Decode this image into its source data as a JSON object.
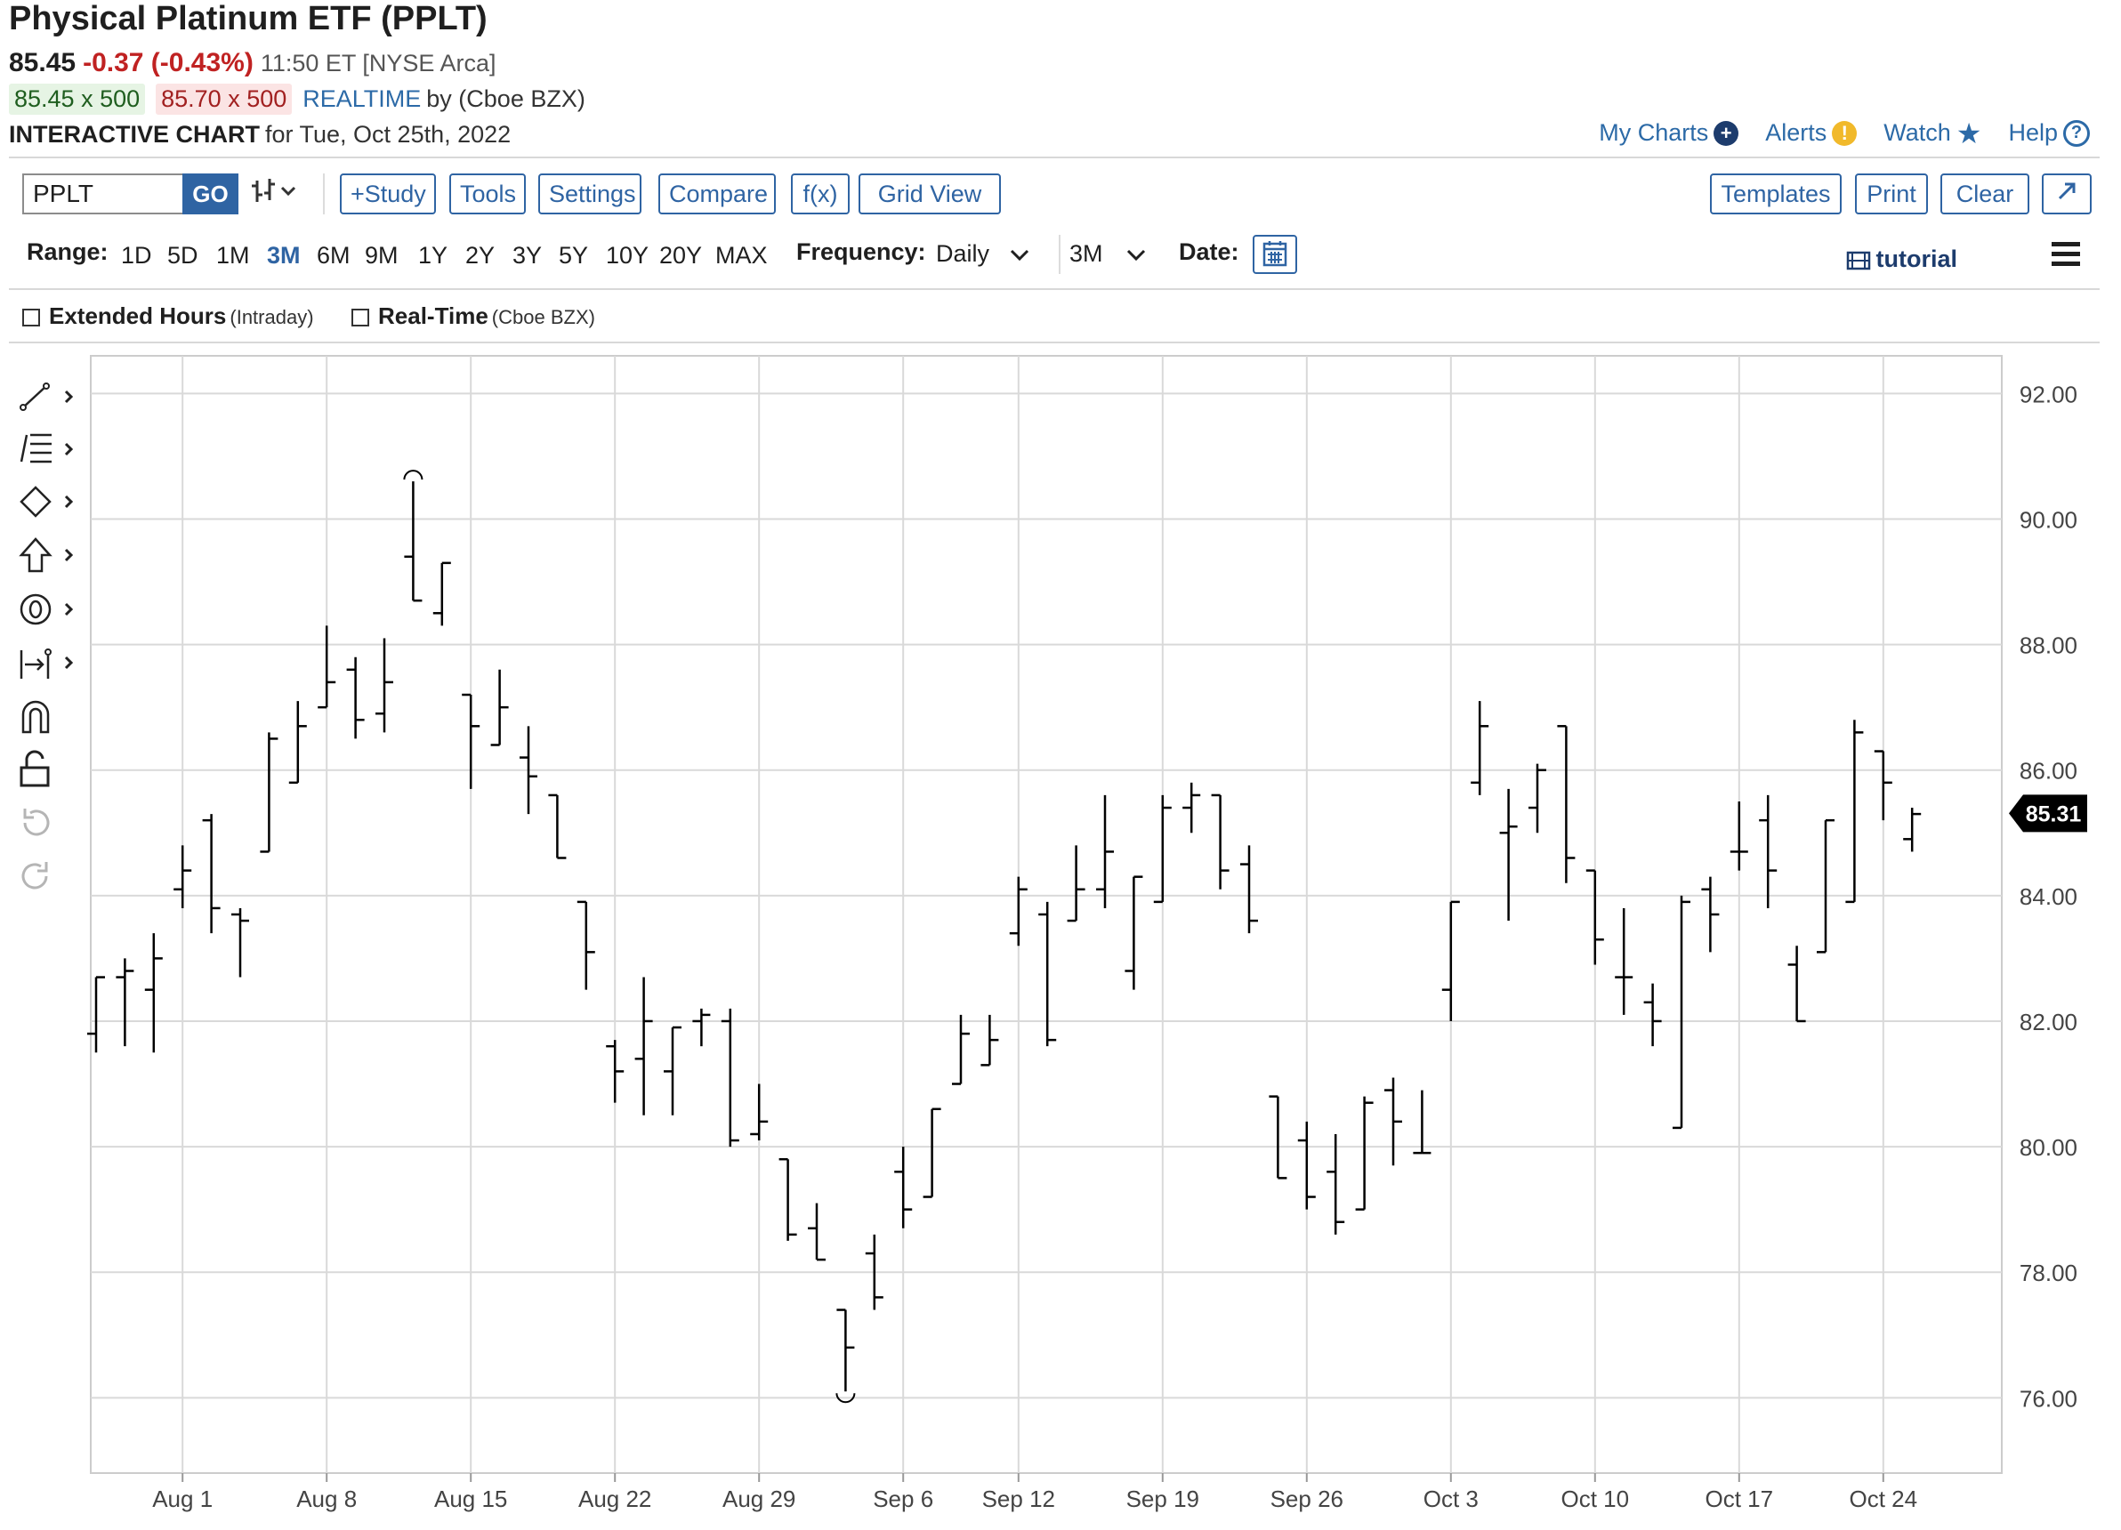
{
  "header": {
    "title": "Physical Platinum ETF (PPLT)",
    "price": "85.45",
    "change": "-0.37 (-0.43%)",
    "time_exchange": "11:50 ET [NYSE Arca]",
    "bid": "85.45 x 500",
    "ask": "85.70 x 500",
    "realtime_label": "REALTIME",
    "realtime_source": "by (Cboe BZX)",
    "chart_label": "INTERACTIVE CHART",
    "chart_date": "for Tue, Oct 25th, 2022"
  },
  "top_links": {
    "my_charts": "My Charts",
    "alerts": "Alerts",
    "watch": "Watch",
    "help": "Help"
  },
  "toolbar": {
    "symbol_value": "PPLT",
    "go": "GO",
    "study": "+Study",
    "tools": "Tools",
    "settings": "Settings",
    "compare": "Compare",
    "fx": "f(x)",
    "grid_view": "Grid View",
    "templates": "Templates",
    "print": "Print",
    "clear": "Clear"
  },
  "range_bar": {
    "range_label": "Range:",
    "ranges": [
      "1D",
      "5D",
      "1M",
      "3M",
      "6M",
      "9M",
      "1Y",
      "2Y",
      "3Y",
      "5Y",
      "10Y",
      "20Y",
      "MAX"
    ],
    "active_range": "3M",
    "frequency_label": "Frequency:",
    "frequency_value": "Daily",
    "period_value": "3M",
    "date_label": "Date:",
    "tutorial": "tutorial"
  },
  "options": {
    "extended_hours": "Extended Hours",
    "extended_hours_sub": "(Intraday)",
    "real_time": "Real-Time",
    "real_time_sub": "(Cboe BZX)"
  },
  "colors": {
    "accent": "#2f64a3",
    "negative": "#c02222",
    "bid_bg": "#e6f4e4",
    "ask_bg": "#fbe4e4",
    "bar": "#000000",
    "grid": "#d9d9d9",
    "last_tag": "#000000"
  },
  "chart_data": {
    "type": "ohlc",
    "frequency": "Daily",
    "ylim": [
      74.8,
      92.6
    ],
    "y_ticks": [
      "92.00",
      "90.00",
      "88.00",
      "86.00",
      "84.00",
      "82.00",
      "80.00",
      "78.00",
      "76.00"
    ],
    "x_ticks": [
      {
        "label": "Aug 1",
        "index": 3
      },
      {
        "label": "Aug 8",
        "index": 8
      },
      {
        "label": "Aug 15",
        "index": 13
      },
      {
        "label": "Aug 22",
        "index": 18
      },
      {
        "label": "Aug 29",
        "index": 23
      },
      {
        "label": "Sep 6",
        "index": 28
      },
      {
        "label": "Sep 12",
        "index": 32
      },
      {
        "label": "Sep 19",
        "index": 37
      },
      {
        "label": "Sep 26",
        "index": 42
      },
      {
        "label": "Oct 3",
        "index": 47
      },
      {
        "label": "Oct 10",
        "index": 52
      },
      {
        "label": "Oct 17",
        "index": 57
      },
      {
        "label": "Oct 24",
        "index": 62
      }
    ],
    "last_price": "85.31",
    "bars": [
      {
        "index": 0,
        "open": 81.8,
        "high": 82.7,
        "low": 81.5,
        "close": 82.7
      },
      {
        "index": 1,
        "open": 82.7,
        "high": 83.0,
        "low": 81.6,
        "close": 82.8
      },
      {
        "index": 2,
        "open": 82.5,
        "high": 83.4,
        "low": 81.5,
        "close": 83.0
      },
      {
        "index": 3,
        "open": 84.1,
        "high": 84.8,
        "low": 83.8,
        "close": 84.4
      },
      {
        "index": 4,
        "open": 85.2,
        "high": 85.3,
        "low": 83.4,
        "close": 83.8
      },
      {
        "index": 5,
        "open": 83.7,
        "high": 83.8,
        "low": 82.7,
        "close": 83.6
      },
      {
        "index": 6,
        "open": 84.7,
        "high": 86.6,
        "low": 84.7,
        "close": 86.5
      },
      {
        "index": 7,
        "open": 85.8,
        "high": 87.1,
        "low": 85.8,
        "close": 86.7
      },
      {
        "index": 8,
        "open": 87.0,
        "high": 88.3,
        "low": 87.0,
        "close": 87.4
      },
      {
        "index": 9,
        "open": 87.6,
        "high": 87.8,
        "low": 86.5,
        "close": 86.8
      },
      {
        "index": 10,
        "open": 86.9,
        "high": 88.1,
        "low": 86.6,
        "close": 87.4
      },
      {
        "index": 11,
        "open": 89.4,
        "high": 90.6,
        "low": 88.7,
        "close": 88.7
      },
      {
        "index": 12,
        "open": 88.5,
        "high": 89.3,
        "low": 88.3,
        "close": 89.3
      },
      {
        "index": 13,
        "open": 87.2,
        "high": 87.2,
        "low": 85.7,
        "close": 86.7
      },
      {
        "index": 14,
        "open": 86.4,
        "high": 87.6,
        "low": 86.4,
        "close": 87.0
      },
      {
        "index": 15,
        "open": 86.2,
        "high": 86.7,
        "low": 85.3,
        "close": 85.9
      },
      {
        "index": 16,
        "open": 85.6,
        "high": 85.6,
        "low": 84.6,
        "close": 84.6
      },
      {
        "index": 17,
        "open": 83.9,
        "high": 83.9,
        "low": 82.5,
        "close": 83.1
      },
      {
        "index": 18,
        "open": 81.6,
        "high": 81.7,
        "low": 80.7,
        "close": 81.2
      },
      {
        "index": 19,
        "open": 81.4,
        "high": 82.7,
        "low": 80.5,
        "close": 82.0
      },
      {
        "index": 20,
        "open": 81.2,
        "high": 81.9,
        "low": 80.5,
        "close": 81.9
      },
      {
        "index": 21,
        "open": 82.0,
        "high": 82.2,
        "low": 81.6,
        "close": 82.1
      },
      {
        "index": 22,
        "open": 82.0,
        "high": 82.2,
        "low": 80.0,
        "close": 80.1
      },
      {
        "index": 23,
        "open": 80.2,
        "high": 81.0,
        "low": 80.1,
        "close": 80.4
      },
      {
        "index": 24,
        "open": 79.8,
        "high": 79.8,
        "low": 78.5,
        "close": 78.6
      },
      {
        "index": 25,
        "open": 78.7,
        "high": 79.1,
        "low": 78.2,
        "close": 78.2
      },
      {
        "index": 26,
        "open": 77.4,
        "high": 77.4,
        "low": 76.1,
        "close": 76.8
      },
      {
        "index": 27,
        "open": 78.3,
        "high": 78.6,
        "low": 77.4,
        "close": 77.6
      },
      {
        "index": 28,
        "open": 79.6,
        "high": 80.0,
        "low": 78.7,
        "close": 79.0
      },
      {
        "index": 29,
        "open": 79.2,
        "high": 80.6,
        "low": 79.2,
        "close": 80.6
      },
      {
        "index": 30,
        "open": 81.0,
        "high": 82.1,
        "low": 81.0,
        "close": 81.8
      },
      {
        "index": 31,
        "open": 81.3,
        "high": 82.1,
        "low": 81.3,
        "close": 81.7
      },
      {
        "index": 32,
        "open": 83.4,
        "high": 84.3,
        "low": 83.2,
        "close": 84.1
      },
      {
        "index": 33,
        "open": 83.7,
        "high": 83.9,
        "low": 81.6,
        "close": 81.7
      },
      {
        "index": 34,
        "open": 83.6,
        "high": 84.8,
        "low": 83.6,
        "close": 84.1
      },
      {
        "index": 35,
        "open": 84.1,
        "high": 85.6,
        "low": 83.8,
        "close": 84.7
      },
      {
        "index": 36,
        "open": 82.8,
        "high": 84.3,
        "low": 82.5,
        "close": 84.3
      },
      {
        "index": 37,
        "open": 83.9,
        "high": 85.6,
        "low": 83.9,
        "close": 85.4
      },
      {
        "index": 38,
        "open": 85.4,
        "high": 85.8,
        "low": 85.0,
        "close": 85.6
      },
      {
        "index": 39,
        "open": 85.6,
        "high": 85.6,
        "low": 84.1,
        "close": 84.4
      },
      {
        "index": 40,
        "open": 84.5,
        "high": 84.8,
        "low": 83.4,
        "close": 83.6
      },
      {
        "index": 41,
        "open": 80.8,
        "high": 80.8,
        "low": 79.5,
        "close": 79.5
      },
      {
        "index": 42,
        "open": 80.1,
        "high": 80.4,
        "low": 79.0,
        "close": 79.2
      },
      {
        "index": 43,
        "open": 79.6,
        "high": 80.2,
        "low": 78.6,
        "close": 78.8
      },
      {
        "index": 44,
        "open": 79.0,
        "high": 80.8,
        "low": 79.0,
        "close": 80.7
      },
      {
        "index": 45,
        "open": 80.9,
        "high": 81.1,
        "low": 79.7,
        "close": 80.4
      },
      {
        "index": 46,
        "open": 79.9,
        "high": 80.9,
        "low": 79.9,
        "close": 79.9
      },
      {
        "index": 47,
        "open": 82.5,
        "high": 83.9,
        "low": 82.0,
        "close": 83.9
      },
      {
        "index": 48,
        "open": 85.8,
        "high": 87.1,
        "low": 85.6,
        "close": 86.7
      },
      {
        "index": 49,
        "open": 85.0,
        "high": 85.7,
        "low": 83.6,
        "close": 85.1
      },
      {
        "index": 50,
        "open": 85.4,
        "high": 86.1,
        "low": 85.0,
        "close": 86.0
      },
      {
        "index": 51,
        "open": 86.7,
        "high": 86.7,
        "low": 84.2,
        "close": 84.6
      },
      {
        "index": 52,
        "open": 84.4,
        "high": 84.4,
        "low": 82.9,
        "close": 83.3
      },
      {
        "index": 53,
        "open": 82.7,
        "high": 83.8,
        "low": 82.1,
        "close": 82.7
      },
      {
        "index": 54,
        "open": 82.3,
        "high": 82.6,
        "low": 81.6,
        "close": 82.0
      },
      {
        "index": 55,
        "open": 80.3,
        "high": 84.0,
        "low": 80.3,
        "close": 83.9
      },
      {
        "index": 56,
        "open": 84.1,
        "high": 84.3,
        "low": 83.1,
        "close": 83.7
      },
      {
        "index": 57,
        "open": 84.7,
        "high": 85.5,
        "low": 84.4,
        "close": 84.7
      },
      {
        "index": 58,
        "open": 85.2,
        "high": 85.6,
        "low": 83.8,
        "close": 84.4
      },
      {
        "index": 59,
        "open": 82.9,
        "high": 83.2,
        "low": 82.0,
        "close": 82.0
      },
      {
        "index": 60,
        "open": 83.1,
        "high": 85.2,
        "low": 83.1,
        "close": 85.2
      },
      {
        "index": 61,
        "open": 83.9,
        "high": 86.8,
        "low": 83.9,
        "close": 86.6
      },
      {
        "index": 62,
        "open": 86.3,
        "high": 86.3,
        "low": 85.2,
        "close": 85.8
      },
      {
        "index": 63,
        "open": 84.9,
        "high": 85.4,
        "low": 84.7,
        "close": 85.3
      }
    ]
  }
}
